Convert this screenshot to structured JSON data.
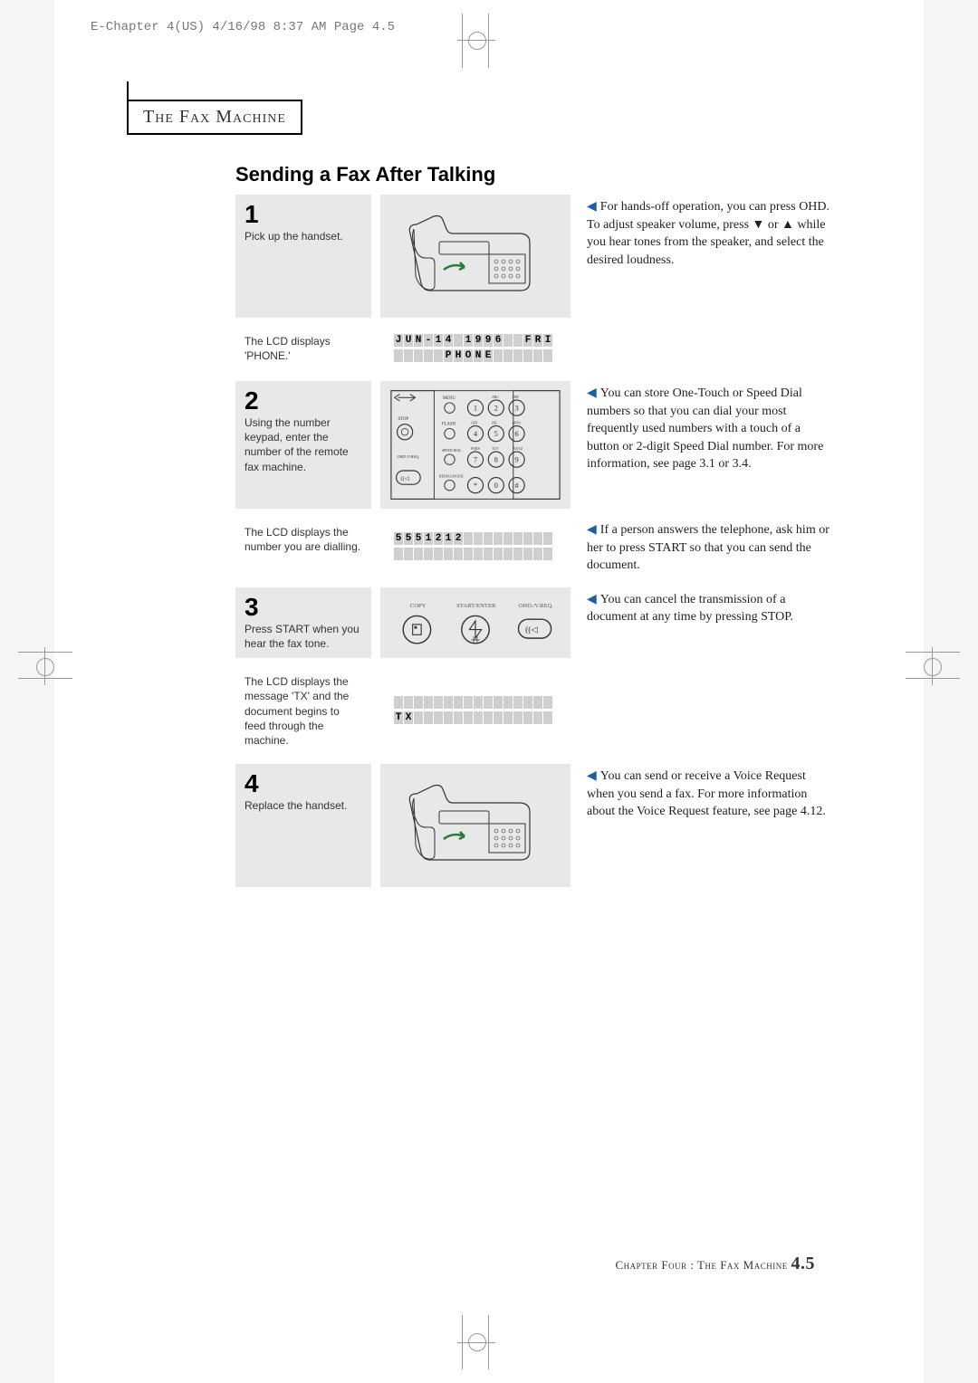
{
  "header_meta": "E-Chapter 4(US)  4/16/98 8:37 AM  Page 4.5",
  "chapter_label": "The Fax Machine",
  "title": "Sending a Fax After Talking",
  "steps": [
    {
      "num": "1",
      "text": "Pick up the handset.",
      "shaded": true,
      "visual": "fax"
    },
    {
      "text": "The LCD displays 'PHONE.'",
      "shaded": false,
      "visual": "lcd1"
    },
    {
      "num": "2",
      "text": "Using the number keypad, enter the number of the remote fax machine.",
      "shaded": true,
      "visual": "keypad"
    },
    {
      "text": "The LCD displays the number you are dialling.",
      "shaded": false,
      "visual": "lcd2"
    },
    {
      "num": "3",
      "text": "Press START when you hear the fax tone.",
      "shaded": true,
      "visual": "buttons"
    },
    {
      "text": "The LCD displays the message 'TX' and the document begins to feed through the machine.",
      "shaded": false,
      "visual": "lcd3"
    },
    {
      "num": "4",
      "text": "Replace the handset.",
      "shaded": true,
      "visual": "fax"
    }
  ],
  "notes": [
    {
      "row": 0,
      "text": "For hands-off operation, you can press OHD. To adjust speaker volume, press ▼ or ▲ while you hear tones from the speaker, and select the desired loudness."
    },
    {
      "row": 2,
      "text": "You can store One-Touch or Speed Dial numbers so that you can dial your most frequently used numbers with a touch of a button or 2-digit Speed Dial number. For more information, see page 3.1 or 3.4."
    },
    {
      "row": 3,
      "text": "If a person answers the telephone, ask him or her to press START so that you can send the document."
    },
    {
      "row": 4,
      "text": "You can cancel the transmission of a document at any time by pressing STOP."
    },
    {
      "row": 6,
      "text": "You can send or receive a Voice Request when you send a fax. For more information about the Voice Request feature, see page 4.12."
    }
  ],
  "lcd1": {
    "line1": "JUN-14 1996  FRI",
    "line2": "     PHONE      "
  },
  "lcd2": {
    "line1": "5551212         ",
    "line2": "                "
  },
  "lcd3": {
    "line1": "                ",
    "line2": "TX              "
  },
  "button_labels": {
    "copy": "COPY",
    "start": "START/ENTER",
    "ohd": "OHD./V.REQ."
  },
  "keypad_labels": {
    "menu": "MENU",
    "stop": "STOP",
    "flash": "FLASH",
    "speed": "SPEED DIAL",
    "ohd": "OHD./V.REQ.",
    "redial": "REDIAL/PAUSE",
    "abc": "ABC",
    "def": "DEF",
    "ghi": "GHI",
    "jkl": "JKL",
    "mno": "MNO",
    "pqrs": "PQRS",
    "tuv": "TUV",
    "wxyz": "WXYZ"
  },
  "footer": {
    "chapter": "Chapter Four",
    "sep": " : ",
    "title": "The Fax Machine",
    "page": "4.5"
  }
}
